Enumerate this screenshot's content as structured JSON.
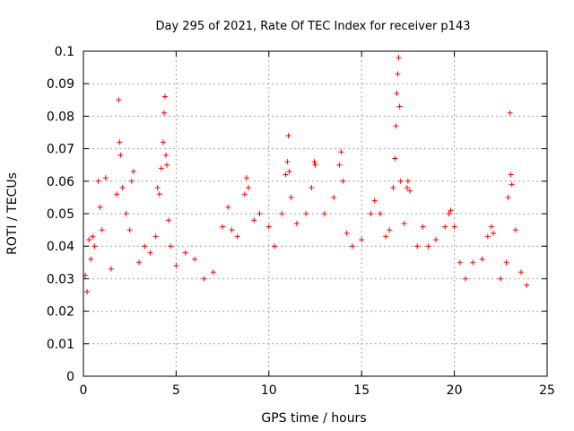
{
  "chart_data": {
    "type": "scatter",
    "title": "Day 295 of 2021, Rate Of TEC Index for receiver p143",
    "xlabel": "GPS time / hours",
    "ylabel": "ROTI / TECUs",
    "xlim": [
      0,
      25
    ],
    "ylim": [
      0,
      0.1
    ],
    "xticks": [
      0,
      5,
      10,
      15,
      20,
      25
    ],
    "xtick_labels": [
      "0",
      "5",
      "10",
      "15",
      "20",
      "25"
    ],
    "yticks": [
      0,
      0.01,
      0.02,
      0.03,
      0.04,
      0.05,
      0.06,
      0.07,
      0.08,
      0.09,
      0.1
    ],
    "ytick_labels": [
      "0",
      "0.01",
      "0.02",
      "0.03",
      "0.04",
      "0.05",
      "0.06",
      "0.07",
      "0.08",
      "0.09",
      "0.1"
    ],
    "grid": true,
    "marker": "+",
    "color": "#ff0000",
    "series": [
      {
        "points": [
          [
            0.1,
            0.031
          ],
          [
            0.2,
            0.026
          ],
          [
            0.3,
            0.042
          ],
          [
            0.4,
            0.036
          ],
          [
            0.5,
            0.043
          ],
          [
            0.6,
            0.04
          ],
          [
            0.8,
            0.06
          ],
          [
            0.9,
            0.052
          ],
          [
            1.0,
            0.045
          ],
          [
            1.2,
            0.061
          ],
          [
            1.5,
            0.033
          ],
          [
            1.8,
            0.056
          ],
          [
            1.9,
            0.085
          ],
          [
            1.95,
            0.072
          ],
          [
            2.0,
            0.068
          ],
          [
            2.1,
            0.058
          ],
          [
            2.3,
            0.05
          ],
          [
            2.5,
            0.045
          ],
          [
            2.6,
            0.06
          ],
          [
            2.7,
            0.063
          ],
          [
            3.0,
            0.035
          ],
          [
            3.3,
            0.04
          ],
          [
            3.6,
            0.038
          ],
          [
            3.9,
            0.043
          ],
          [
            4.0,
            0.058
          ],
          [
            4.1,
            0.056
          ],
          [
            4.2,
            0.064
          ],
          [
            4.3,
            0.072
          ],
          [
            4.35,
            0.081
          ],
          [
            4.4,
            0.086
          ],
          [
            4.45,
            0.068
          ],
          [
            4.5,
            0.065
          ],
          [
            4.6,
            0.048
          ],
          [
            4.7,
            0.04
          ],
          [
            5.0,
            0.034
          ],
          [
            5.5,
            0.038
          ],
          [
            6.0,
            0.036
          ],
          [
            6.5,
            0.03
          ],
          [
            7.0,
            0.032
          ],
          [
            7.5,
            0.046
          ],
          [
            7.8,
            0.052
          ],
          [
            8.0,
            0.045
          ],
          [
            8.3,
            0.043
          ],
          [
            8.7,
            0.056
          ],
          [
            8.8,
            0.061
          ],
          [
            8.9,
            0.058
          ],
          [
            9.2,
            0.048
          ],
          [
            9.5,
            0.05
          ],
          [
            10.0,
            0.046
          ],
          [
            10.3,
            0.04
          ],
          [
            10.7,
            0.05
          ],
          [
            10.9,
            0.062
          ],
          [
            11.0,
            0.066
          ],
          [
            11.05,
            0.074
          ],
          [
            11.1,
            0.063
          ],
          [
            11.2,
            0.055
          ],
          [
            11.5,
            0.047
          ],
          [
            12.0,
            0.05
          ],
          [
            12.3,
            0.058
          ],
          [
            12.45,
            0.066
          ],
          [
            12.5,
            0.065
          ],
          [
            13.0,
            0.05
          ],
          [
            13.5,
            0.055
          ],
          [
            13.8,
            0.065
          ],
          [
            13.9,
            0.069
          ],
          [
            14.0,
            0.06
          ],
          [
            14.2,
            0.044
          ],
          [
            14.5,
            0.04
          ],
          [
            15.0,
            0.042
          ],
          [
            15.5,
            0.05
          ],
          [
            15.7,
            0.054
          ],
          [
            16.0,
            0.05
          ],
          [
            16.3,
            0.043
          ],
          [
            16.5,
            0.045
          ],
          [
            16.7,
            0.058
          ],
          [
            16.8,
            0.067
          ],
          [
            16.85,
            0.077
          ],
          [
            16.9,
            0.087
          ],
          [
            16.95,
            0.093
          ],
          [
            17.0,
            0.098
          ],
          [
            17.05,
            0.083
          ],
          [
            17.1,
            0.06
          ],
          [
            17.3,
            0.047
          ],
          [
            17.45,
            0.058
          ],
          [
            17.5,
            0.06
          ],
          [
            17.6,
            0.057
          ],
          [
            18.0,
            0.04
          ],
          [
            18.3,
            0.046
          ],
          [
            18.6,
            0.04
          ],
          [
            19.0,
            0.042
          ],
          [
            19.5,
            0.046
          ],
          [
            19.7,
            0.05
          ],
          [
            19.8,
            0.051
          ],
          [
            20.0,
            0.046
          ],
          [
            20.3,
            0.035
          ],
          [
            20.6,
            0.03
          ],
          [
            21.0,
            0.035
          ],
          [
            21.5,
            0.036
          ],
          [
            21.8,
            0.043
          ],
          [
            22.0,
            0.046
          ],
          [
            22.1,
            0.044
          ],
          [
            22.5,
            0.03
          ],
          [
            22.8,
            0.035
          ],
          [
            22.9,
            0.055
          ],
          [
            23.0,
            0.081
          ],
          [
            23.05,
            0.062
          ],
          [
            23.1,
            0.059
          ],
          [
            23.3,
            0.045
          ],
          [
            23.6,
            0.032
          ],
          [
            23.9,
            0.028
          ]
        ]
      }
    ]
  }
}
